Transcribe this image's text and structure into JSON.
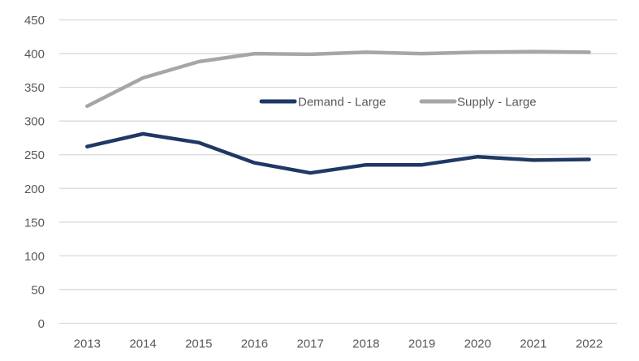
{
  "chart_data": {
    "type": "line",
    "title": "",
    "xlabel": "",
    "ylabel": "",
    "categories": [
      "2013",
      "2014",
      "2015",
      "2016",
      "2017",
      "2018",
      "2019",
      "2020",
      "2021",
      "2022"
    ],
    "ylim": [
      0,
      450
    ],
    "yticks": [
      "0",
      "50",
      "100",
      "150",
      "200",
      "250",
      "300",
      "350",
      "400",
      "450"
    ],
    "grid": true,
    "legend_position": "inside-top-center",
    "series": [
      {
        "name": "Demand - Large",
        "color": "#1f3864",
        "values": [
          262,
          281,
          268,
          238,
          223,
          235,
          235,
          247,
          242,
          243
        ]
      },
      {
        "name": "Supply - Large",
        "color": "#a6a6a6",
        "values": [
          322,
          364,
          388,
          400,
          399,
          402,
          400,
          402,
          403,
          402
        ]
      }
    ]
  }
}
